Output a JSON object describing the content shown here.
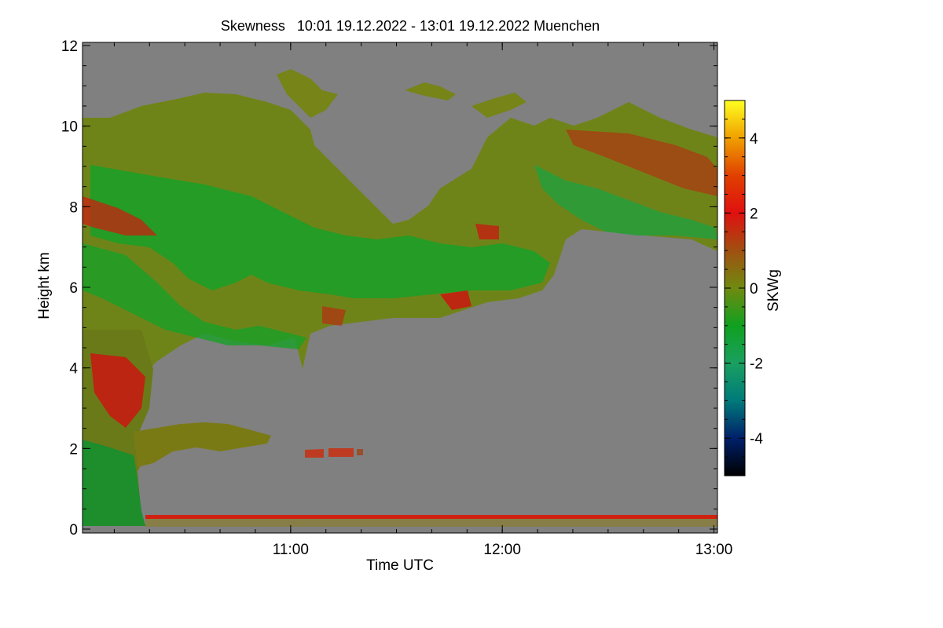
{
  "chart_data": {
    "type": "heatmap",
    "title": "Skewness   10:01 19.12.2022 - 13:01 19.12.2022 Muenchen",
    "xlabel": "Time UTC",
    "ylabel": "Height km",
    "x_range": [
      "10:01",
      "13:01"
    ],
    "x_ticks": [
      "11:00",
      "12:00",
      "13:00"
    ],
    "ylim": [
      0,
      12
    ],
    "y_ticks": [
      "0",
      "2",
      "4",
      "6",
      "8",
      "10",
      "12"
    ],
    "colorbar": {
      "label": "SKWg",
      "range": [
        -5,
        5
      ],
      "ticks": [
        "-4",
        "-2",
        "0",
        "2",
        "4"
      ],
      "colors": [
        "#000000",
        "#00206a",
        "#007a7a",
        "#1aa060",
        "#10a020",
        "#708a10",
        "#a05010",
        "#e01010",
        "#e04000",
        "#f0a000",
        "#ffff20"
      ]
    },
    "background_color": "#808080",
    "features": [
      {
        "name": "upper cloud layer",
        "height_range_km": [
          4.5,
          11
        ],
        "dominant_skewness": "-1 to 1"
      },
      {
        "name": "lower cloud layer",
        "height_range_km": [
          1.5,
          2.6
        ],
        "dominant_skewness": "0 to 1"
      },
      {
        "name": "near-surface line",
        "height_km": 0.3,
        "dominant_skewness": "1 to 2"
      }
    ]
  }
}
